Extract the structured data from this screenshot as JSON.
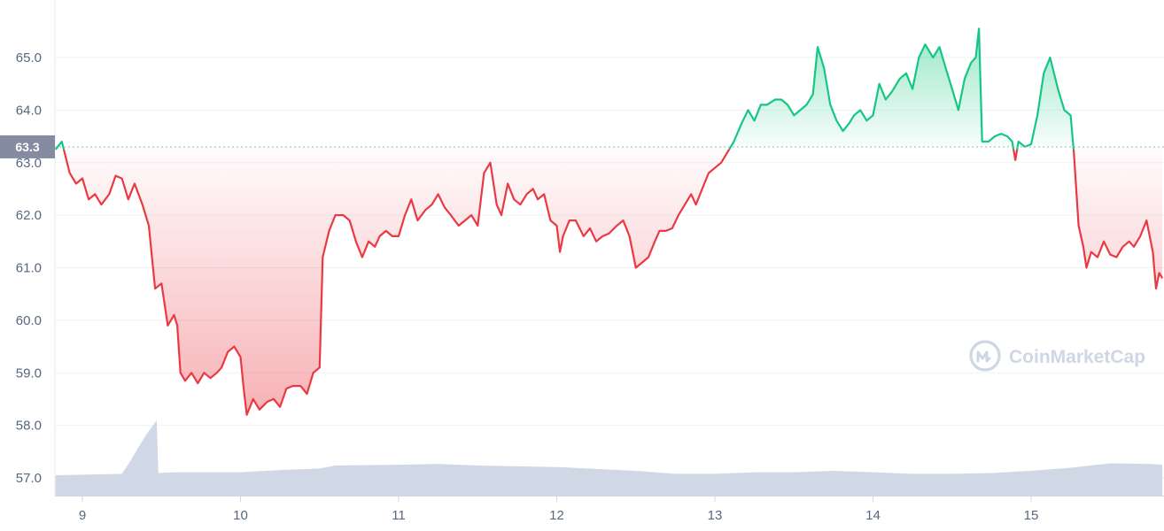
{
  "watermark": "CoinMarketCap",
  "colors": {
    "up": "#16c784",
    "down": "#ea3943",
    "volume": "#cfd6e4",
    "grid": "#eff2f5",
    "label_bg": "#858ca2"
  },
  "chart_data": {
    "type": "area",
    "title": "",
    "xlabel": "",
    "ylabel": "",
    "ylim": [
      56.7,
      66.0
    ],
    "y_ticks": [
      "57.0",
      "58.0",
      "59.0",
      "60.0",
      "61.0",
      "62.0",
      "63.0",
      "64.0",
      "65.0"
    ],
    "x_ticks": [
      "9",
      "10",
      "11",
      "12",
      "13",
      "14",
      "15"
    ],
    "x_range": [
      8.83,
      15.83
    ],
    "baseline": 63.3,
    "baseline_label": "63.3",
    "grid": true,
    "series": [
      {
        "values": [
          [
            8.83,
            63.25
          ],
          [
            8.87,
            63.4
          ],
          [
            8.92,
            62.8
          ],
          [
            8.96,
            62.6
          ],
          [
            9.0,
            62.7
          ],
          [
            9.04,
            62.3
          ],
          [
            9.08,
            62.4
          ],
          [
            9.12,
            62.2
          ],
          [
            9.17,
            62.4
          ],
          [
            9.21,
            62.75
          ],
          [
            9.25,
            62.7
          ],
          [
            9.29,
            62.3
          ],
          [
            9.33,
            62.6
          ],
          [
            9.38,
            62.2
          ],
          [
            9.42,
            61.8
          ],
          [
            9.46,
            60.6
          ],
          [
            9.5,
            60.7
          ],
          [
            9.54,
            59.9
          ],
          [
            9.58,
            60.1
          ],
          [
            9.6,
            59.9
          ],
          [
            9.62,
            59.0
          ],
          [
            9.65,
            58.85
          ],
          [
            9.69,
            59.0
          ],
          [
            9.73,
            58.8
          ],
          [
            9.77,
            59.0
          ],
          [
            9.81,
            58.9
          ],
          [
            9.85,
            59.0
          ],
          [
            9.88,
            59.1
          ],
          [
            9.92,
            59.4
          ],
          [
            9.96,
            59.5
          ],
          [
            10.0,
            59.3
          ],
          [
            10.02,
            58.7
          ],
          [
            10.04,
            58.2
          ],
          [
            10.08,
            58.5
          ],
          [
            10.12,
            58.3
          ],
          [
            10.17,
            58.45
          ],
          [
            10.21,
            58.5
          ],
          [
            10.25,
            58.35
          ],
          [
            10.29,
            58.7
          ],
          [
            10.33,
            58.75
          ],
          [
            10.38,
            58.75
          ],
          [
            10.42,
            58.6
          ],
          [
            10.46,
            59.0
          ],
          [
            10.5,
            59.1
          ],
          [
            10.52,
            61.2
          ],
          [
            10.56,
            61.7
          ],
          [
            10.6,
            62.0
          ],
          [
            10.65,
            62.0
          ],
          [
            10.69,
            61.9
          ],
          [
            10.73,
            61.5
          ],
          [
            10.77,
            61.2
          ],
          [
            10.81,
            61.5
          ],
          [
            10.85,
            61.4
          ],
          [
            10.88,
            61.6
          ],
          [
            10.92,
            61.7
          ],
          [
            10.96,
            61.6
          ],
          [
            11.0,
            61.6
          ],
          [
            11.04,
            62.0
          ],
          [
            11.08,
            62.3
          ],
          [
            11.12,
            61.9
          ],
          [
            11.17,
            62.1
          ],
          [
            11.21,
            62.2
          ],
          [
            11.25,
            62.4
          ],
          [
            11.29,
            62.15
          ],
          [
            11.33,
            62.0
          ],
          [
            11.38,
            61.8
          ],
          [
            11.42,
            61.9
          ],
          [
            11.46,
            62.0
          ],
          [
            11.5,
            61.8
          ],
          [
            11.54,
            62.8
          ],
          [
            11.58,
            63.0
          ],
          [
            11.62,
            62.2
          ],
          [
            11.65,
            62.0
          ],
          [
            11.69,
            62.6
          ],
          [
            11.73,
            62.3
          ],
          [
            11.77,
            62.2
          ],
          [
            11.81,
            62.4
          ],
          [
            11.85,
            62.5
          ],
          [
            11.88,
            62.3
          ],
          [
            11.92,
            62.4
          ],
          [
            11.96,
            61.9
          ],
          [
            12.0,
            61.8
          ],
          [
            12.02,
            61.3
          ],
          [
            12.04,
            61.6
          ],
          [
            12.08,
            61.9
          ],
          [
            12.12,
            61.9
          ],
          [
            12.17,
            61.6
          ],
          [
            12.21,
            61.75
          ],
          [
            12.25,
            61.5
          ],
          [
            12.29,
            61.6
          ],
          [
            12.33,
            61.65
          ],
          [
            12.38,
            61.8
          ],
          [
            12.42,
            61.9
          ],
          [
            12.46,
            61.6
          ],
          [
            12.5,
            61.0
          ],
          [
            12.54,
            61.1
          ],
          [
            12.58,
            61.2
          ],
          [
            12.62,
            61.5
          ],
          [
            12.65,
            61.7
          ],
          [
            12.69,
            61.7
          ],
          [
            12.73,
            61.75
          ],
          [
            12.77,
            62.0
          ],
          [
            12.81,
            62.2
          ],
          [
            12.85,
            62.4
          ],
          [
            12.88,
            62.2
          ],
          [
            12.92,
            62.5
          ],
          [
            12.96,
            62.8
          ],
          [
            13.0,
            62.9
          ],
          [
            13.04,
            63.0
          ],
          [
            13.08,
            63.2
          ],
          [
            13.12,
            63.4
          ],
          [
            13.17,
            63.75
          ],
          [
            13.21,
            64.0
          ],
          [
            13.25,
            63.8
          ],
          [
            13.29,
            64.1
          ],
          [
            13.33,
            64.1
          ],
          [
            13.38,
            64.2
          ],
          [
            13.42,
            64.2
          ],
          [
            13.46,
            64.1
          ],
          [
            13.5,
            63.9
          ],
          [
            13.54,
            64.0
          ],
          [
            13.58,
            64.1
          ],
          [
            13.62,
            64.3
          ],
          [
            13.65,
            65.2
          ],
          [
            13.69,
            64.8
          ],
          [
            13.73,
            64.1
          ],
          [
            13.77,
            63.8
          ],
          [
            13.81,
            63.6
          ],
          [
            13.85,
            63.75
          ],
          [
            13.88,
            63.9
          ],
          [
            13.92,
            64.0
          ],
          [
            13.96,
            63.8
          ],
          [
            14.0,
            63.9
          ],
          [
            14.04,
            64.5
          ],
          [
            14.08,
            64.2
          ],
          [
            14.12,
            64.35
          ],
          [
            14.17,
            64.6
          ],
          [
            14.21,
            64.7
          ],
          [
            14.25,
            64.4
          ],
          [
            14.29,
            65.0
          ],
          [
            14.33,
            65.25
          ],
          [
            14.38,
            65.0
          ],
          [
            14.42,
            65.2
          ],
          [
            14.46,
            64.8
          ],
          [
            14.5,
            64.4
          ],
          [
            14.54,
            64.0
          ],
          [
            14.58,
            64.6
          ],
          [
            14.62,
            64.9
          ],
          [
            14.65,
            65.0
          ],
          [
            14.67,
            65.55
          ],
          [
            14.69,
            63.4
          ],
          [
            14.73,
            63.4
          ],
          [
            14.77,
            63.5
          ],
          [
            14.81,
            63.55
          ],
          [
            14.85,
            63.5
          ],
          [
            14.88,
            63.4
          ],
          [
            14.9,
            63.05
          ],
          [
            14.92,
            63.4
          ],
          [
            14.96,
            63.3
          ],
          [
            15.0,
            63.35
          ],
          [
            15.04,
            63.9
          ],
          [
            15.08,
            64.7
          ],
          [
            15.12,
            65.0
          ],
          [
            15.17,
            64.4
          ],
          [
            15.21,
            64.0
          ],
          [
            15.25,
            63.9
          ],
          [
            15.27,
            63.2
          ],
          [
            15.3,
            61.8
          ],
          [
            15.33,
            61.4
          ],
          [
            15.35,
            61.0
          ],
          [
            15.38,
            61.3
          ],
          [
            15.42,
            61.2
          ],
          [
            15.46,
            61.5
          ],
          [
            15.5,
            61.25
          ],
          [
            15.54,
            61.2
          ],
          [
            15.58,
            61.4
          ],
          [
            15.62,
            61.5
          ],
          [
            15.65,
            61.4
          ],
          [
            15.69,
            61.6
          ],
          [
            15.73,
            61.9
          ],
          [
            15.77,
            61.3
          ],
          [
            15.79,
            60.6
          ],
          [
            15.81,
            60.9
          ],
          [
            15.83,
            60.8
          ]
        ]
      }
    ],
    "volume": [
      [
        8.83,
        0.27
      ],
      [
        9.25,
        0.29
      ],
      [
        9.3,
        0.45
      ],
      [
        9.4,
        0.8
      ],
      [
        9.47,
        1.0
      ],
      [
        9.48,
        0.3
      ],
      [
        9.6,
        0.31
      ],
      [
        10.0,
        0.31
      ],
      [
        10.25,
        0.34
      ],
      [
        10.5,
        0.36
      ],
      [
        10.6,
        0.4
      ],
      [
        11.0,
        0.41
      ],
      [
        11.25,
        0.42
      ],
      [
        11.5,
        0.4
      ],
      [
        12.0,
        0.38
      ],
      [
        12.5,
        0.33
      ],
      [
        12.75,
        0.29
      ],
      [
        13.0,
        0.29
      ],
      [
        13.25,
        0.31
      ],
      [
        13.5,
        0.31
      ],
      [
        13.75,
        0.33
      ],
      [
        14.0,
        0.31
      ],
      [
        14.25,
        0.29
      ],
      [
        14.5,
        0.29
      ],
      [
        14.75,
        0.3
      ],
      [
        15.0,
        0.33
      ],
      [
        15.25,
        0.37
      ],
      [
        15.5,
        0.43
      ],
      [
        15.75,
        0.42
      ],
      [
        15.83,
        0.41
      ]
    ]
  }
}
